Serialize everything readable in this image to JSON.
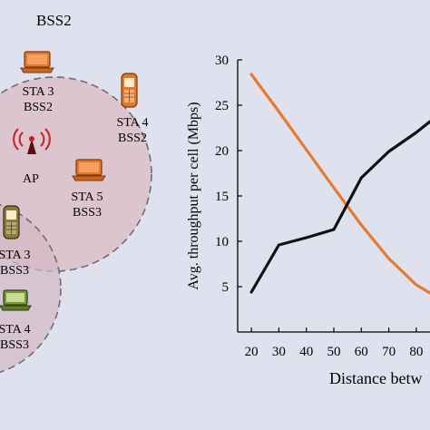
{
  "diagram": {
    "bss_title": "BSS2",
    "nodes": [
      {
        "id": "sta3-bss2",
        "line1": "STA 3",
        "line2": "BSS2",
        "icon": "laptop-icon"
      },
      {
        "id": "sta4-bss2",
        "line1": "STA 4",
        "line2": "BSS2",
        "icon": "phone-icon"
      },
      {
        "id": "ap",
        "line1": "AP",
        "line2": "",
        "icon": "antenna-icon"
      },
      {
        "id": "sta5-bss3",
        "line1": "STA 5",
        "line2": "BSS3",
        "icon": "laptop-icon"
      },
      {
        "id": "sta3-bss3",
        "line1": "STA 3",
        "line2": "BSS3",
        "icon": "phone-icon"
      },
      {
        "id": "sta4-bss3",
        "line1": "STA 4",
        "line2": "BSS3",
        "icon": "laptop-icon"
      }
    ],
    "colors": {
      "background": "#dfe2ee",
      "bss_circle_fill": "#dcc0c8",
      "bss_circle_stroke": "#6e6e6e",
      "orange_device": "#e3782a",
      "green_device": "#7a9a3a"
    }
  },
  "chart_data": {
    "type": "line",
    "xlabel": "Distance betw",
    "ylabel": "Avg. throughput  per cell  (Mbps)",
    "xlim": [
      15,
      85
    ],
    "ylim": [
      0,
      30
    ],
    "x_ticks": [
      20,
      30,
      40,
      50,
      60,
      70,
      80
    ],
    "y_ticks": [
      5,
      10,
      15,
      20,
      25,
      30
    ],
    "grid": false,
    "series": [
      {
        "color": "#e67a2e",
        "x": [
          20,
          30,
          40,
          50,
          60,
          70,
          80,
          85
        ],
        "y": [
          28.4,
          24.3,
          20.1,
          15.9,
          11.8,
          8.1,
          5.2,
          4.3
        ]
      },
      {
        "color": "#111111",
        "x": [
          20,
          30,
          40,
          50,
          60,
          70,
          80,
          85
        ],
        "y": [
          4.4,
          9.6,
          10.4,
          11.3,
          17.0,
          19.9,
          22.0,
          23.2
        ]
      }
    ]
  }
}
